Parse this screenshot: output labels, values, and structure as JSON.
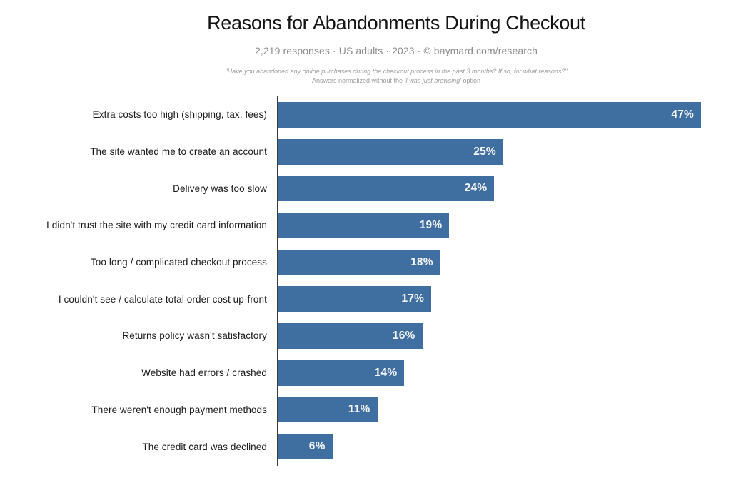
{
  "header": {
    "title": "Reasons for Abandonments During Checkout",
    "subtitle": "2,219 responses · US adults · 2023 · © baymard.com/research",
    "note_line1": "\"Have you abandoned any online purchases during the checkout process in the past 3 months? If so, for what reasons?\"",
    "note_line2_prefix": "Answers normalized without the ",
    "note_line2_quote": "'I was just browsing'",
    "note_line2_suffix": " option"
  },
  "chart_data": {
    "type": "bar",
    "orientation": "horizontal",
    "title": "Reasons for Abandonments During Checkout",
    "subtitle": "2,219 responses · US adults · 2023 · © baymard.com/research",
    "categories": [
      "Extra costs too high (shipping, tax, fees)",
      "The site wanted me to create an account",
      "Delivery was too slow",
      "I didn't trust the site with my credit card information",
      "Too long / complicated checkout process",
      "I couldn't see / calculate total order cost up-front",
      "Returns policy wasn't satisfactory",
      "Website had errors / crashed",
      "There weren't enough payment methods",
      "The credit card was declined"
    ],
    "values": [
      47,
      25,
      24,
      19,
      18,
      17,
      16,
      14,
      11,
      6
    ],
    "value_labels": [
      "47%",
      "25%",
      "24%",
      "19%",
      "18%",
      "17%",
      "16%",
      "14%",
      "11%",
      "6%"
    ],
    "xlabel": "",
    "ylabel": "",
    "xlim": [
      0,
      47
    ],
    "grid": false,
    "legend": false,
    "bar_color": "#3e6fa0",
    "value_label_color": "#f4f6f8"
  }
}
